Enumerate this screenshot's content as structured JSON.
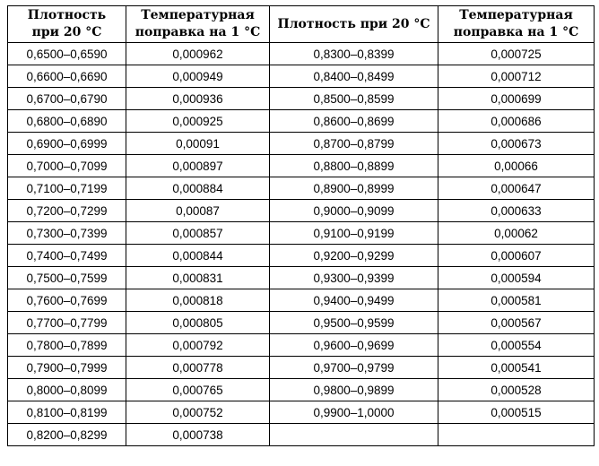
{
  "headers": {
    "density_line1": "Плотность",
    "density_line2": "при 20 °С",
    "correction_line1": "Температурная",
    "correction_line2": "поправка на 1 °С",
    "density_single": "Плотность при 20 °С"
  },
  "rows": [
    {
      "range_a": "0,6500–0,6590",
      "corr_a": "0,000962",
      "range_b": "0,8300–0,8399",
      "corr_b": "0,000725"
    },
    {
      "range_a": "0,6600–0,6690",
      "corr_a": "0,000949",
      "range_b": "0,8400–0,8499",
      "corr_b": "0,000712"
    },
    {
      "range_a": "0,6700–0,6790",
      "corr_a": "0,000936",
      "range_b": "0,8500–0,8599",
      "corr_b": "0,000699"
    },
    {
      "range_a": "0,6800–0,6890",
      "corr_a": "0,000925",
      "range_b": "0,8600–0,8699",
      "corr_b": "0,000686"
    },
    {
      "range_a": "0,6900–0,6999",
      "corr_a": "0,00091",
      "range_b": "0,8700–0,8799",
      "corr_b": "0,000673"
    },
    {
      "range_a": "0,7000–0,7099",
      "corr_a": "0,000897",
      "range_b": "0,8800–0,8899",
      "corr_b": "0,00066"
    },
    {
      "range_a": "0,7100–0,7199",
      "corr_a": "0,000884",
      "range_b": "0,8900–0,8999",
      "corr_b": "0,000647"
    },
    {
      "range_a": "0,7200–0,7299",
      "corr_a": "0,00087",
      "range_b": "0,9000–0,9099",
      "corr_b": "0,000633"
    },
    {
      "range_a": "0,7300–0,7399",
      "corr_a": "0,000857",
      "range_b": "0,9100–0,9199",
      "corr_b": "0,00062"
    },
    {
      "range_a": "0,7400–0,7499",
      "corr_a": "0,000844",
      "range_b": "0,9200–0,9299",
      "corr_b": "0,000607"
    },
    {
      "range_a": "0,7500–0,7599",
      "corr_a": "0,000831",
      "range_b": "0,9300–0,9399",
      "corr_b": "0,000594"
    },
    {
      "range_a": "0,7600–0,7699",
      "corr_a": "0,000818",
      "range_b": "0,9400–0,9499",
      "corr_b": "0,000581"
    },
    {
      "range_a": "0,7700–0,7799",
      "corr_a": "0,000805",
      "range_b": "0,9500–0,9599",
      "corr_b": "0,000567"
    },
    {
      "range_a": "0,7800–0,7899",
      "corr_a": "0,000792",
      "range_b": "0,9600–0,9699",
      "corr_b": "0,000554"
    },
    {
      "range_a": "0,7900–0,7999",
      "corr_a": "0,000778",
      "range_b": "0,9700–0,9799",
      "corr_b": "0,000541"
    },
    {
      "range_a": "0,8000–0,8099",
      "corr_a": "0,000765",
      "range_b": "0,9800–0,9899",
      "corr_b": "0,000528"
    },
    {
      "range_a": "0,8100–0,8199",
      "corr_a": "0,000752",
      "range_b": "0,9900–1,0000",
      "corr_b": "0,000515"
    },
    {
      "range_a": "0,8200–0,8299",
      "corr_a": "0,000738",
      "range_b": "",
      "corr_b": ""
    }
  ]
}
